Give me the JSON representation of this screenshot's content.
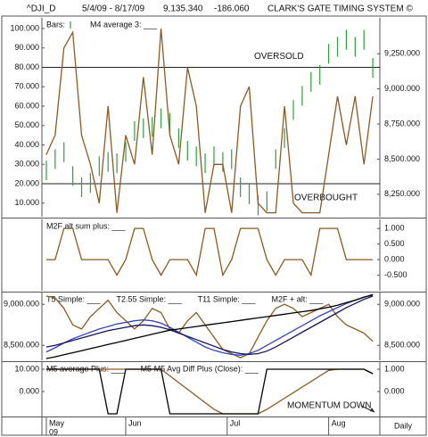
{
  "header": {
    "symbol": "^DJI_D",
    "range": "5/4/09 - 8/17/09",
    "last": "9,135.340",
    "change": "-186.060",
    "title": "CLARK'S GATE TIMING SYSTEM ©"
  },
  "chart_data": [
    {
      "type": "line",
      "xlim": [
        -0.5,
        37.8
      ],
      "ylim": [
        3,
        105.5
      ],
      "yticks": [
        {
          "value": 10,
          "label": "10.000"
        },
        {
          "value": 20,
          "label": "20.000"
        },
        {
          "value": 30,
          "label": "30.000"
        },
        {
          "value": 40,
          "label": "40.000"
        },
        {
          "value": 50,
          "label": "50.000"
        },
        {
          "value": 60,
          "label": "60.000"
        },
        {
          "value": 70,
          "label": "70.000"
        },
        {
          "value": 80,
          "label": "80.000"
        },
        {
          "value": 90,
          "label": "90.000"
        },
        {
          "value": 100,
          "label": "100.000"
        }
      ],
      "y2lim": [
        8090,
        9506
      ],
      "y2ticks": [
        {
          "value": 8250,
          "label": "8,250.000"
        },
        {
          "value": 8500,
          "label": "8,500.000"
        },
        {
          "value": 8750,
          "label": "8,750.000"
        },
        {
          "value": 9000,
          "label": "9,000.000"
        },
        {
          "value": 9250,
          "label": "9,250.000"
        }
      ],
      "levels": [
        {
          "value": 80,
          "label": "OVERSOLD"
        },
        {
          "value": 20,
          "label": "OVERBOUGHT"
        }
      ],
      "series": [
        {
          "name": "Bars:",
          "type": "hilo",
          "axis": "y2",
          "color": "#2e9e3e",
          "high": [
            8490,
            8570,
            8620,
            8450,
            8370,
            8400,
            8520,
            8550,
            8540,
            8620,
            8770,
            8790,
            8800,
            8860,
            8830,
            8720,
            8630,
            8590,
            8540,
            8590,
            8550,
            8570,
            8370,
            8320,
            8240,
            8270,
            8570,
            8720,
            8920,
            9020,
            9120,
            9170,
            9320,
            9370,
            9420,
            9370,
            9420,
            9220
          ],
          "low": [
            8350,
            8430,
            8480,
            8310,
            8230,
            8260,
            8380,
            8410,
            8400,
            8480,
            8630,
            8650,
            8660,
            8720,
            8690,
            8580,
            8490,
            8450,
            8400,
            8450,
            8410,
            8430,
            8230,
            8180,
            8100,
            8130,
            8430,
            8580,
            8780,
            8880,
            8980,
            9030,
            9180,
            9230,
            9280,
            9230,
            9280,
            9080
          ]
        },
        {
          "name": "M4 average 3: ___",
          "type": "line",
          "color": "#8b5a1e",
          "values": [
            35,
            45,
            90,
            98,
            45,
            30,
            10,
            60,
            5,
            45,
            30,
            75,
            35,
            100,
            45,
            30,
            80,
            60,
            5,
            30,
            30,
            5,
            60,
            70,
            10,
            5,
            5,
            60,
            10,
            5,
            5,
            5,
            35,
            65,
            40,
            65,
            30,
            65
          ]
        }
      ]
    },
    {
      "type": "line",
      "xlim": [
        -0.5,
        37.8
      ],
      "y2lim": [
        -1,
        1.29
      ],
      "y2ticks": [
        {
          "value": -0.5,
          "label": "-0.500"
        },
        {
          "value": 0,
          "label": "0.000"
        },
        {
          "value": 0.5,
          "label": "0.500"
        },
        {
          "value": 1,
          "label": "1.000"
        }
      ],
      "series": [
        {
          "name": "M2F alt sum plus: ___",
          "type": "line",
          "axis": "y2",
          "color": "#8b5a1e",
          "values": [
            0,
            0,
            1,
            1,
            0,
            0,
            0,
            0,
            -0.5,
            0,
            1,
            1,
            0,
            -0.5,
            0,
            0,
            0,
            -0.5,
            1,
            1,
            -0.5,
            0,
            1,
            1,
            1,
            0,
            -0.5,
            0,
            0,
            0,
            -0.5,
            1,
            1,
            1,
            0,
            0,
            0,
            0
          ]
        }
      ]
    },
    {
      "type": "line",
      "xlim": [
        -0.5,
        37.8
      ],
      "ylim": [
        8318,
        9144
      ],
      "yticks": [
        {
          "value": 8500,
          "label": "8,500.000"
        },
        {
          "value": 9000,
          "label": "9,000.000"
        }
      ],
      "y2lim": [
        8318,
        9144
      ],
      "y2ticks": [
        {
          "value": 8500,
          "label": "8,500.000"
        },
        {
          "value": 9000,
          "label": "9,000.000"
        }
      ],
      "series": [
        {
          "name": "T5 Simple: ___",
          "type": "line",
          "color": "#8b5a1e",
          "values": [
            9100,
            9080,
            8950,
            8750,
            8700,
            8850,
            8950,
            9050,
            8900,
            8800,
            8700,
            8800,
            8950,
            8900,
            8700,
            8650,
            8800,
            8900,
            8750,
            8600,
            8450,
            8400,
            8350,
            8400,
            8600,
            8800,
            8950,
            9000,
            8950,
            8850,
            8900,
            8950,
            9000,
            8850,
            8750,
            8700,
            8650,
            8550
          ]
        },
        {
          "name": "T2.55 Simple: ___",
          "type": "line",
          "color": "#3344bb",
          "values": [
            8420,
            8470,
            8530,
            8580,
            8620,
            8660,
            8700,
            8730,
            8760,
            8780,
            8800,
            8810,
            8800,
            8770,
            8720,
            8660,
            8600,
            8540,
            8480,
            8440,
            8410,
            8390,
            8380,
            8400,
            8440,
            8500,
            8560,
            8620,
            8680,
            8740,
            8800,
            8860,
            8910,
            8960,
            9010,
            9050,
            9090,
            9110
          ]
        },
        {
          "name": "T11 Simple: ___",
          "type": "line",
          "color": "#141460",
          "values": [
            8480,
            8500,
            8530,
            8560,
            8590,
            8620,
            8650,
            8680,
            8700,
            8720,
            8740,
            8750,
            8740,
            8720,
            8690,
            8650,
            8610,
            8570,
            8530,
            8490,
            8450,
            8420,
            8400,
            8390,
            8400,
            8430,
            8480,
            8540,
            8600,
            8660,
            8720,
            8780,
            8840,
            8900,
            8960,
            9010,
            9060,
            9100
          ]
        },
        {
          "name": "M2F + alt: ___",
          "type": "line",
          "color": "#000000",
          "values": [
            8340,
            8360,
            8385,
            8410,
            8435,
            8460,
            8485,
            8510,
            8535,
            8560,
            8585,
            8610,
            8635,
            8660,
            8685,
            8700,
            8715,
            8730,
            8745,
            8760,
            8775,
            8790,
            8805,
            8820,
            8835,
            8850,
            8865,
            8880,
            8895,
            8910,
            8925,
            8945,
            8965,
            8990,
            9020,
            9050,
            9085,
            9120
          ]
        }
      ]
    },
    {
      "type": "line",
      "xlim": [
        -0.5,
        37.8
      ],
      "ylim": [
        -10.8,
        13.2
      ],
      "yticks": [
        {
          "value": 0,
          "label": "0.000"
        },
        {
          "value": 10,
          "label": "10.000"
        }
      ],
      "y2lim": [
        -1.08,
        1.32
      ],
      "y2ticks": [
        {
          "value": 0,
          "label": "0.000"
        },
        {
          "value": 1,
          "label": "1.000"
        }
      ],
      "annotation": "MOMENTUM DOWN",
      "xticks": [
        {
          "value": 0,
          "label": "May"
        },
        {
          "value": 9,
          "label": "Jun"
        },
        {
          "value": 20.5,
          "label": "Jul"
        },
        {
          "value": 32,
          "label": "Aug"
        }
      ],
      "year_label": "09",
      "interval_label": "Daily",
      "series": [
        {
          "name": "M5 average Plus: ___",
          "type": "line",
          "color": "#8b5a1e",
          "values": [
            10,
            10,
            10,
            10,
            10,
            10,
            10,
            10,
            10,
            10,
            10,
            10,
            10,
            10,
            7,
            4,
            1,
            -2,
            -5,
            -8,
            -10,
            -10,
            -10,
            -10,
            -10,
            -8,
            -5.5,
            -3,
            -0.5,
            2,
            4.5,
            7,
            9.5,
            10,
            10,
            10,
            10,
            8
          ]
        },
        {
          "name": "M5 M5 Avg Diff Plus (Close): ___",
          "type": "line",
          "axis": "y2",
          "color": "#000000",
          "values": [
            1,
            1,
            1,
            1,
            1,
            1,
            1,
            -1,
            -1,
            1,
            1,
            1,
            1,
            1,
            -1,
            -1,
            -1,
            -1,
            -1,
            -1,
            -1,
            -1,
            -1,
            -1,
            -1,
            1,
            1,
            1,
            1,
            1,
            1,
            1,
            1,
            1,
            1,
            1,
            1,
            0.8
          ]
        }
      ]
    }
  ]
}
